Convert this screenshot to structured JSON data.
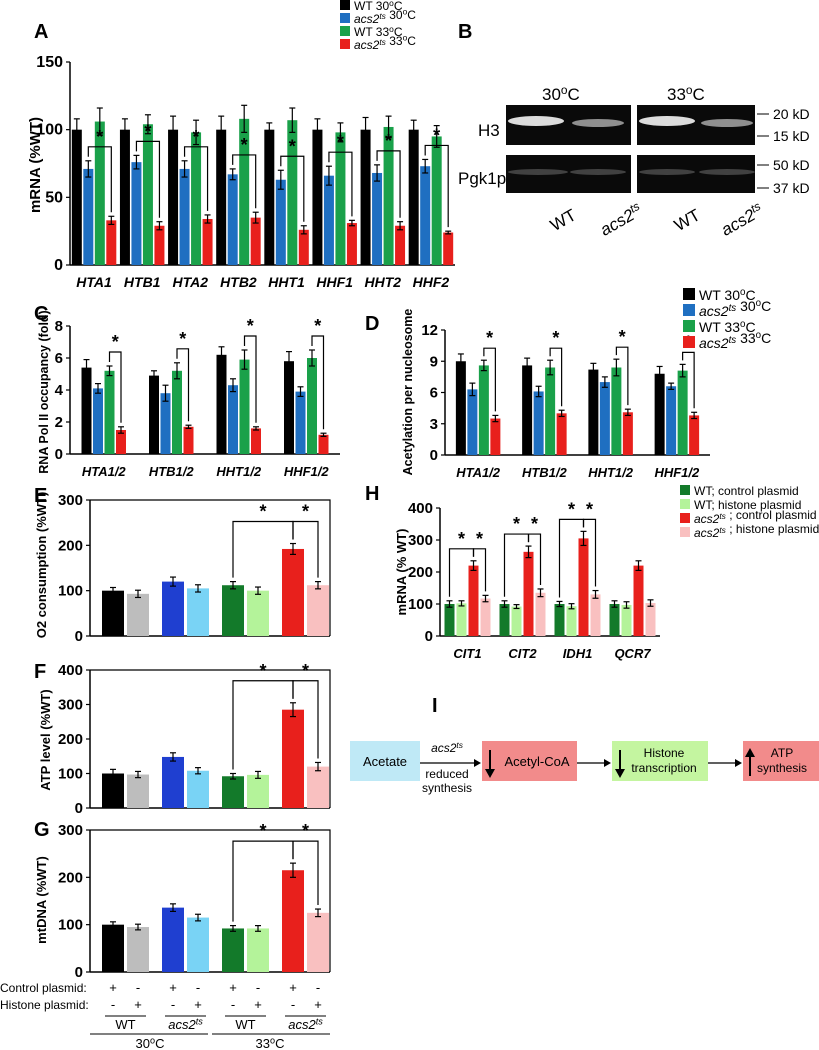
{
  "colors": {
    "black": "#000000",
    "blue": "#1f6fc1",
    "green": "#1aa14a",
    "red": "#e8201c",
    "gray": "#bdbdbd",
    "lightblue": "#79d3f5",
    "darkgreen": "#137a2a",
    "lightgreen": "#b4f39a",
    "pink": "#f9c0c0",
    "pinkbox": "#f28b8b",
    "cyan": "#bfe9f6",
    "lime": "#c4f5a0"
  },
  "chart_data": [
    {
      "id": "A",
      "panel": "A",
      "type": "bar",
      "ylabel": "mRNA (%WT)",
      "ylim": [
        0,
        150
      ],
      "yticks": [
        "0",
        "50",
        "100",
        "150"
      ],
      "categories": [
        "HTA1",
        "HTB1",
        "HTA2",
        "HTB2",
        "HHT1",
        "HHF1",
        "HHT2",
        "HHF2"
      ],
      "series": [
        {
          "name": "WT 30oC",
          "values": [
            100,
            100,
            100,
            100,
            100,
            100,
            100,
            100
          ],
          "errors": [
            8,
            8,
            10,
            10,
            5,
            8,
            9,
            7
          ]
        },
        {
          "name": "acs2ts 30oC",
          "values": [
            71,
            76,
            71,
            67,
            63,
            66,
            68,
            73
          ],
          "errors": [
            6,
            5,
            6,
            4,
            7,
            7,
            6,
            5
          ]
        },
        {
          "name": "WT 33oC",
          "values": [
            106,
            104,
            98,
            108,
            107,
            98,
            102,
            95
          ],
          "errors": [
            10,
            7,
            9,
            10,
            9,
            7,
            8,
            8
          ]
        },
        {
          "name": "acs2ts 33oC",
          "values": [
            33,
            29,
            34,
            35,
            26,
            31,
            29,
            24
          ],
          "errors": [
            3,
            3,
            3,
            4,
            3,
            2,
            3,
            1
          ]
        }
      ],
      "legend": [
        "WT 30oC",
        "acs2ts 30oC",
        "WT 33oC",
        "acs2ts 33oC"
      ],
      "significance": "*"
    },
    {
      "id": "C",
      "panel": "C",
      "type": "bar",
      "ylabel": "RNA Pol II occupancy (fold)",
      "ylim": [
        0,
        8
      ],
      "yticks": [
        "0",
        "2",
        "4",
        "6",
        "8"
      ],
      "categories": [
        "HTA1/2",
        "HTB1/2",
        "HHT1/2",
        "HHF1/2"
      ],
      "series": [
        {
          "name": "WT 30oC",
          "values": [
            5.4,
            4.9,
            6.2,
            5.8
          ],
          "errors": [
            0.5,
            0.3,
            0.5,
            0.6
          ]
        },
        {
          "name": "acs2ts 30oC",
          "values": [
            4.1,
            3.8,
            4.3,
            3.9
          ],
          "errors": [
            0.3,
            0.5,
            0.4,
            0.3
          ]
        },
        {
          "name": "WT 33oC",
          "values": [
            5.2,
            5.2,
            5.9,
            6.0
          ],
          "errors": [
            0.3,
            0.5,
            0.6,
            0.5
          ]
        },
        {
          "name": "acs2ts 33oC",
          "values": [
            1.5,
            1.7,
            1.6,
            1.2
          ],
          "errors": [
            0.2,
            0.1,
            0.1,
            0.1
          ]
        }
      ]
    },
    {
      "id": "D",
      "panel": "D",
      "type": "bar",
      "ylabel": "Acetylation per nucleosome",
      "ylim": [
        0,
        12
      ],
      "yticks": [
        "0",
        "3",
        "6",
        "9",
        "12"
      ],
      "categories": [
        "HTA1/2",
        "HTB1/2",
        "HHT1/2",
        "HHF1/2"
      ],
      "series": [
        {
          "name": "WT 30oC",
          "values": [
            9.0,
            8.6,
            8.2,
            7.8
          ],
          "errors": [
            0.7,
            0.7,
            0.6,
            0.7
          ]
        },
        {
          "name": "acs2ts 30oC",
          "values": [
            6.3,
            6.1,
            7.0,
            6.6
          ],
          "errors": [
            0.6,
            0.5,
            0.5,
            0.3
          ]
        },
        {
          "name": "WT 33oC",
          "values": [
            8.6,
            8.4,
            8.4,
            8.1
          ],
          "errors": [
            0.5,
            0.7,
            0.8,
            0.6
          ]
        },
        {
          "name": "acs2ts 33oC",
          "values": [
            3.5,
            4.0,
            4.1,
            3.8
          ],
          "errors": [
            0.3,
            0.3,
            0.3,
            0.3
          ]
        }
      ],
      "legend": [
        "WT 30oC",
        "acs2ts 30oC",
        "WT 33oC",
        "acs2ts 33oC"
      ]
    },
    {
      "id": "E",
      "panel": "E",
      "type": "bar",
      "ylabel": "O2 consumption (%WT)",
      "ylim": [
        0,
        300
      ],
      "yticks": [
        "0",
        "100",
        "200",
        "300"
      ],
      "values": [
        100,
        93,
        120,
        105,
        112,
        100,
        192,
        112
      ],
      "errors": [
        7,
        8,
        10,
        8,
        8,
        8,
        12,
        8
      ]
    },
    {
      "id": "F",
      "panel": "F",
      "type": "bar",
      "ylabel": "ATP level (%WT)",
      "ylim": [
        0,
        400
      ],
      "yticks": [
        "0",
        "100",
        "200",
        "300",
        "400"
      ],
      "values": [
        100,
        97,
        148,
        108,
        92,
        96,
        285,
        120
      ],
      "errors": [
        12,
        9,
        12,
        9,
        8,
        10,
        20,
        12
      ]
    },
    {
      "id": "G",
      "panel": "G",
      "type": "bar",
      "ylabel": "mtDNA (%WT)",
      "ylim": [
        0,
        300
      ],
      "yticks": [
        "0",
        "100",
        "200",
        "300"
      ],
      "values": [
        100,
        95,
        136,
        115,
        92,
        92,
        215,
        125
      ],
      "errors": [
        6,
        6,
        8,
        7,
        6,
        6,
        15,
        8
      ],
      "x_rows": {
        "control_plasmid": {
          "label": "Control plasmid:",
          "marks": [
            "+",
            "-",
            "+",
            "-",
            "+",
            "-",
            "+",
            "-"
          ]
        },
        "histone_plasmid": {
          "label": "Histone plasmid:",
          "marks": [
            "-",
            "+",
            "-",
            "+",
            "-",
            "+",
            "-",
            "+"
          ]
        },
        "strains": [
          "WT",
          "acs2ts",
          "WT",
          "acs2ts"
        ],
        "temperatures": [
          "30oC",
          "33oC"
        ]
      }
    },
    {
      "id": "H",
      "panel": "H",
      "type": "bar",
      "ylabel": "mRNA (% WT)",
      "ylim": [
        0,
        400
      ],
      "yticks": [
        "0",
        "100",
        "200",
        "300",
        "400"
      ],
      "categories": [
        "CIT1",
        "CIT2",
        "IDH1",
        "QCR7"
      ],
      "series": [
        {
          "name": "WT; control plasmid",
          "values": [
            100,
            100,
            100,
            100
          ],
          "errors": [
            10,
            10,
            8,
            10
          ]
        },
        {
          "name": "WT; histone plasmid",
          "values": [
            102,
            92,
            93,
            97
          ],
          "errors": [
            8,
            6,
            8,
            10
          ]
        },
        {
          "name": "acs2ts ; control plasmid",
          "values": [
            220,
            263,
            305,
            220
          ],
          "errors": [
            15,
            18,
            22,
            15
          ]
        },
        {
          "name": "acs2ts ; histone plasmid",
          "values": [
            117,
            135,
            130,
            103
          ],
          "errors": [
            10,
            12,
            12,
            10
          ]
        }
      ],
      "legend": [
        "WT; control plasmid",
        "WT; histone plasmid",
        "acs2ts ; control plasmid",
        "acs2ts ; histone plasmid"
      ]
    }
  ],
  "blot": {
    "panel": "B",
    "temp1": "30oC",
    "temp2": "33oC",
    "row1": "H3",
    "row2": "Pgk1p",
    "mw": [
      "20 kD",
      "15 kD",
      "50 kD",
      "37 kD"
    ],
    "lanes": [
      "WT",
      "acs2ts",
      "WT",
      "acs2ts"
    ]
  },
  "diagram": {
    "panel": "I",
    "acetate": "Acetate",
    "enzyme": "acs2ts",
    "note": "reduced synthesis",
    "acetylcoa": "Acetyl-CoA",
    "histone": "Histone transcription",
    "atp": "ATP synthesis"
  }
}
